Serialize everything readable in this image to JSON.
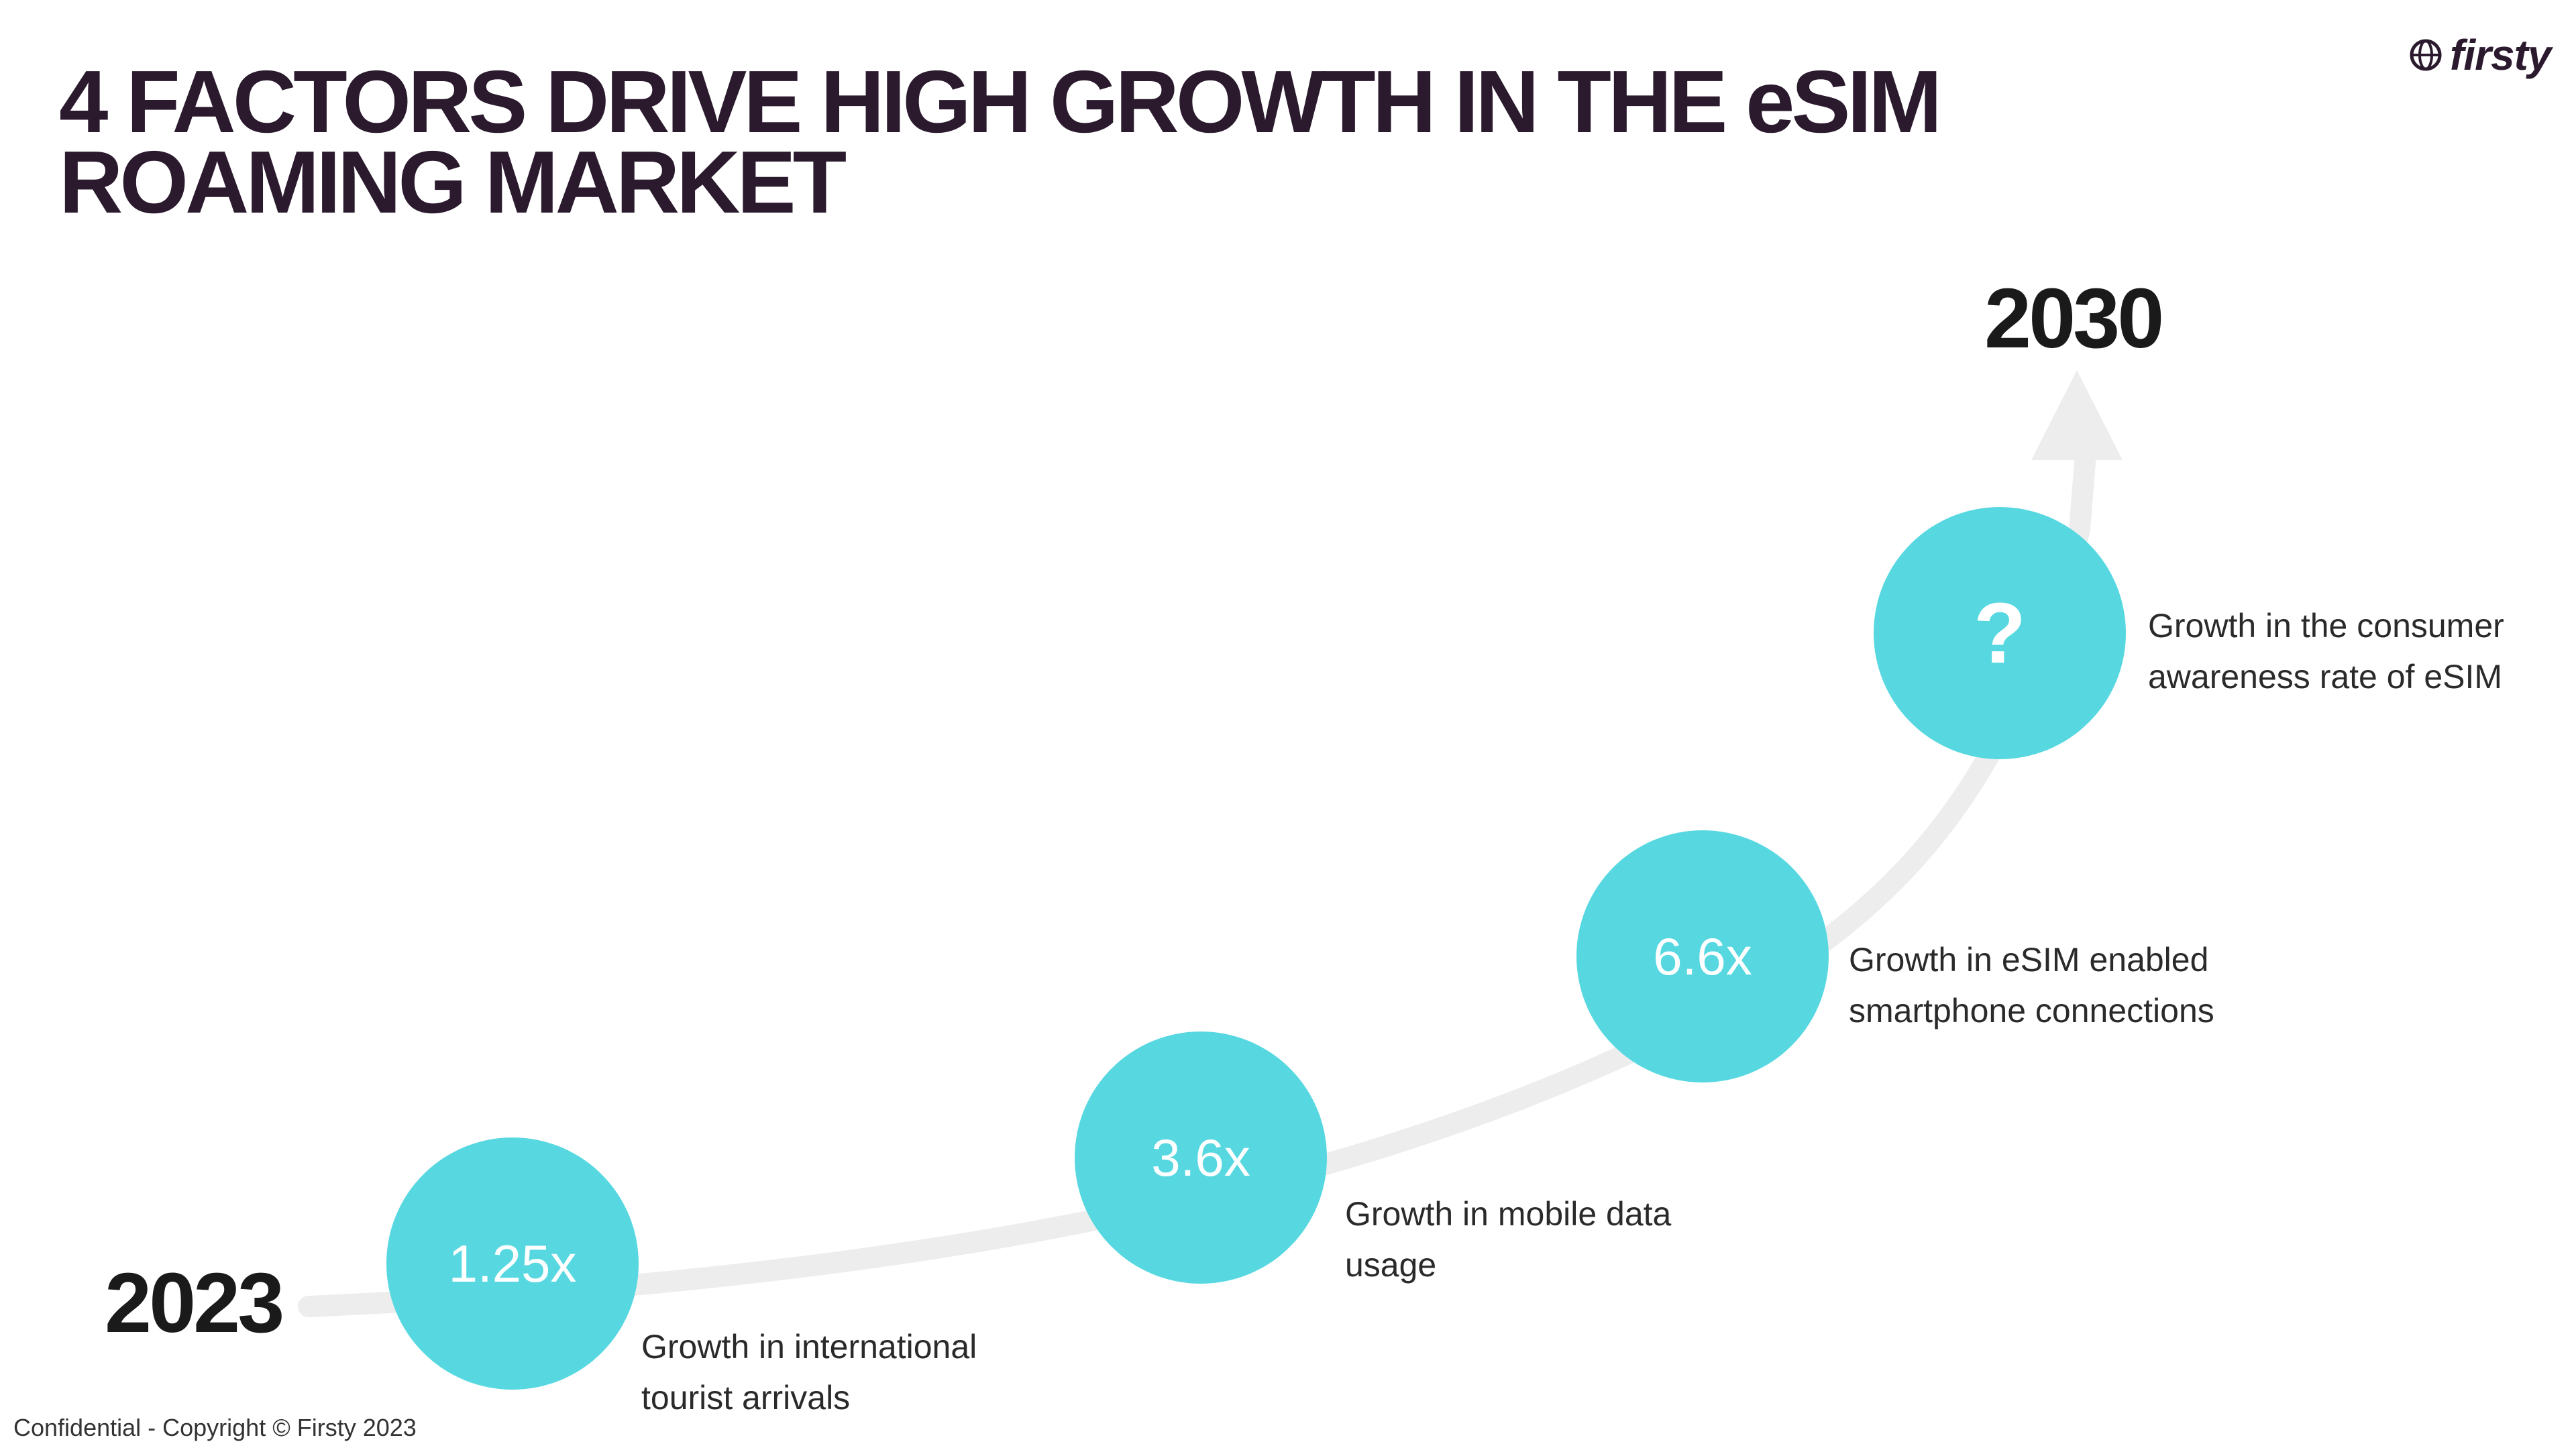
{
  "slide": {
    "title_line1": "4 FACTORS DRIVE HIGH GROWTH IN THE eSIM",
    "title_line2": "ROAMING MARKET",
    "brand": "firsty",
    "brand_icon": "globe-icon",
    "footer": "Confidential - Copyright © Firsty 2023"
  },
  "timeline": {
    "start_year": "2023",
    "end_year": "2030",
    "curve_color": "#ededed",
    "circle_color": "#57d8e1"
  },
  "factors": [
    {
      "value": "1.25x",
      "label_line1": "Growth in international",
      "label_line2": "tourist arrivals"
    },
    {
      "value": "3.6x",
      "label_line1": "Growth in mobile data",
      "label_line2": "usage"
    },
    {
      "value": "6.6x",
      "label_line1": "Growth in eSIM enabled",
      "label_line2": "smartphone connections"
    },
    {
      "value": "?",
      "label_line1": "Growth in the consumer",
      "label_line2": "awareness rate of eSIM"
    }
  ]
}
